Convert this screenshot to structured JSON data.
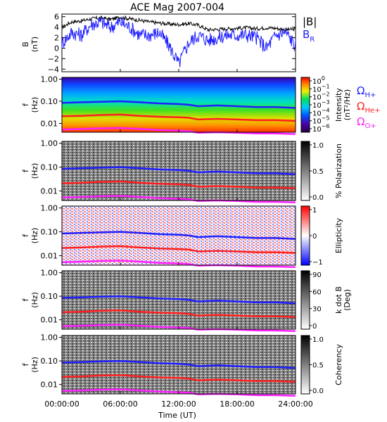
{
  "title": "ACE Mag 2007-004",
  "x_axis": {
    "label": "Time (UT)",
    "ticks": [
      "00:00:00",
      "06:00:00",
      "12:00:00",
      "18:00:00",
      "24:00:00"
    ],
    "range_hours": [
      0,
      24
    ]
  },
  "colors": {
    "B_total": "#000000",
    "B_R": "#1f1fff",
    "omega_h": "#1f1fff",
    "omega_he": "#ff1f1f",
    "omega_o": "#ff1fff"
  },
  "legend_top": {
    "B_total": "|B|",
    "B_R_main": "B",
    "B_R_sub": "R"
  },
  "legend_gyro": {
    "h_main": "Ω",
    "h_sub": "H+",
    "he_main": "Ω",
    "he_sub": "He+",
    "o_main": "Ω",
    "o_sub": "O+"
  },
  "panels": {
    "bfield": {
      "ylabel_line1": "B",
      "ylabel_line2": "(nT)",
      "yticks": [
        "6",
        "4",
        "2",
        "0",
        "−2",
        "−4"
      ]
    },
    "freq_ylabel_line1": "f",
    "freq_ylabel_line2": "(Hz)",
    "freq_ticks": [
      "1.00",
      "0.10",
      "0.01"
    ],
    "intensity": {
      "cbar_label_line1": "Intensity",
      "cbar_label_line2": "(nT²/Hz)",
      "cbar_ticks": [
        "10",
        "10",
        "10",
        "10",
        "10",
        "10",
        "10"
      ],
      "cbar_exps": [
        "0",
        "−1",
        "−2",
        "−3",
        "−4",
        "−5",
        "−6"
      ]
    },
    "polarization": {
      "cbar_label": "% Polarization",
      "cbar_ticks": [
        "1.0",
        "0.5",
        "0.0"
      ]
    },
    "ellipticity": {
      "cbar_label": "Ellipticity",
      "cbar_ticks": [
        "1",
        "0",
        "−1"
      ]
    },
    "kdotb": {
      "cbar_label_line1": "k dot B",
      "cbar_label_line2": "(Deg)",
      "cbar_ticks": [
        "90",
        "60",
        "30",
        "0"
      ]
    },
    "coherency": {
      "cbar_label": "Coherency",
      "cbar_ticks": [
        "1.0",
        "0.5",
        "0.0"
      ]
    }
  },
  "chart_data": {
    "type": "line",
    "title": "ACE Mag 2007-004",
    "xlabel": "Time (UT)",
    "x_hours": [
      0,
      1,
      2,
      3,
      4,
      5,
      6,
      7,
      8,
      9,
      10,
      11,
      12,
      13,
      14,
      15,
      16,
      17,
      18,
      19,
      20,
      21,
      22,
      23,
      24
    ],
    "series": [
      {
        "name": "|B|",
        "values": [
          4.0,
          5.0,
          5.2,
          5.6,
          5.8,
          5.5,
          5.9,
          5.6,
          5.3,
          5.0,
          4.8,
          4.6,
          4.5,
          4.7,
          4.4,
          3.5,
          3.6,
          3.7,
          3.8,
          3.9,
          3.7,
          3.9,
          3.8,
          3.5,
          3.6
        ]
      },
      {
        "name": "B_R",
        "values": [
          1.0,
          3.0,
          2.5,
          4.5,
          5.0,
          4.0,
          5.0,
          4.0,
          2.5,
          2.5,
          3.0,
          0.5,
          -3.0,
          1.0,
          2.5,
          1.5,
          2.0,
          2.5,
          2.5,
          2.5,
          2.0,
          0.0,
          2.5,
          3.0,
          0.5
        ]
      }
    ],
    "ylabel": "B (nT)",
    "ylim": [
      -4.5,
      6.5
    ],
    "gyrofrequencies_hz": {
      "x_hours": [
        0,
        2,
        4,
        6,
        8,
        10,
        12,
        13,
        14,
        16,
        18,
        20,
        22,
        24
      ],
      "H+": [
        0.085,
        0.09,
        0.095,
        0.1,
        0.09,
        0.08,
        0.075,
        0.07,
        0.06,
        0.065,
        0.06,
        0.055,
        0.055,
        0.05
      ],
      "He+": [
        0.021,
        0.022,
        0.024,
        0.025,
        0.022,
        0.02,
        0.019,
        0.018,
        0.015,
        0.016,
        0.015,
        0.014,
        0.014,
        0.013
      ],
      "O+": [
        0.0053,
        0.0056,
        0.006,
        0.0062,
        0.0056,
        0.005,
        0.0047,
        0.0045,
        0.0038,
        0.004,
        0.0038,
        0.0035,
        0.0035,
        0.0033
      ]
    },
    "freq_ylim_hz": [
      0.004,
      1.2
    ]
  }
}
